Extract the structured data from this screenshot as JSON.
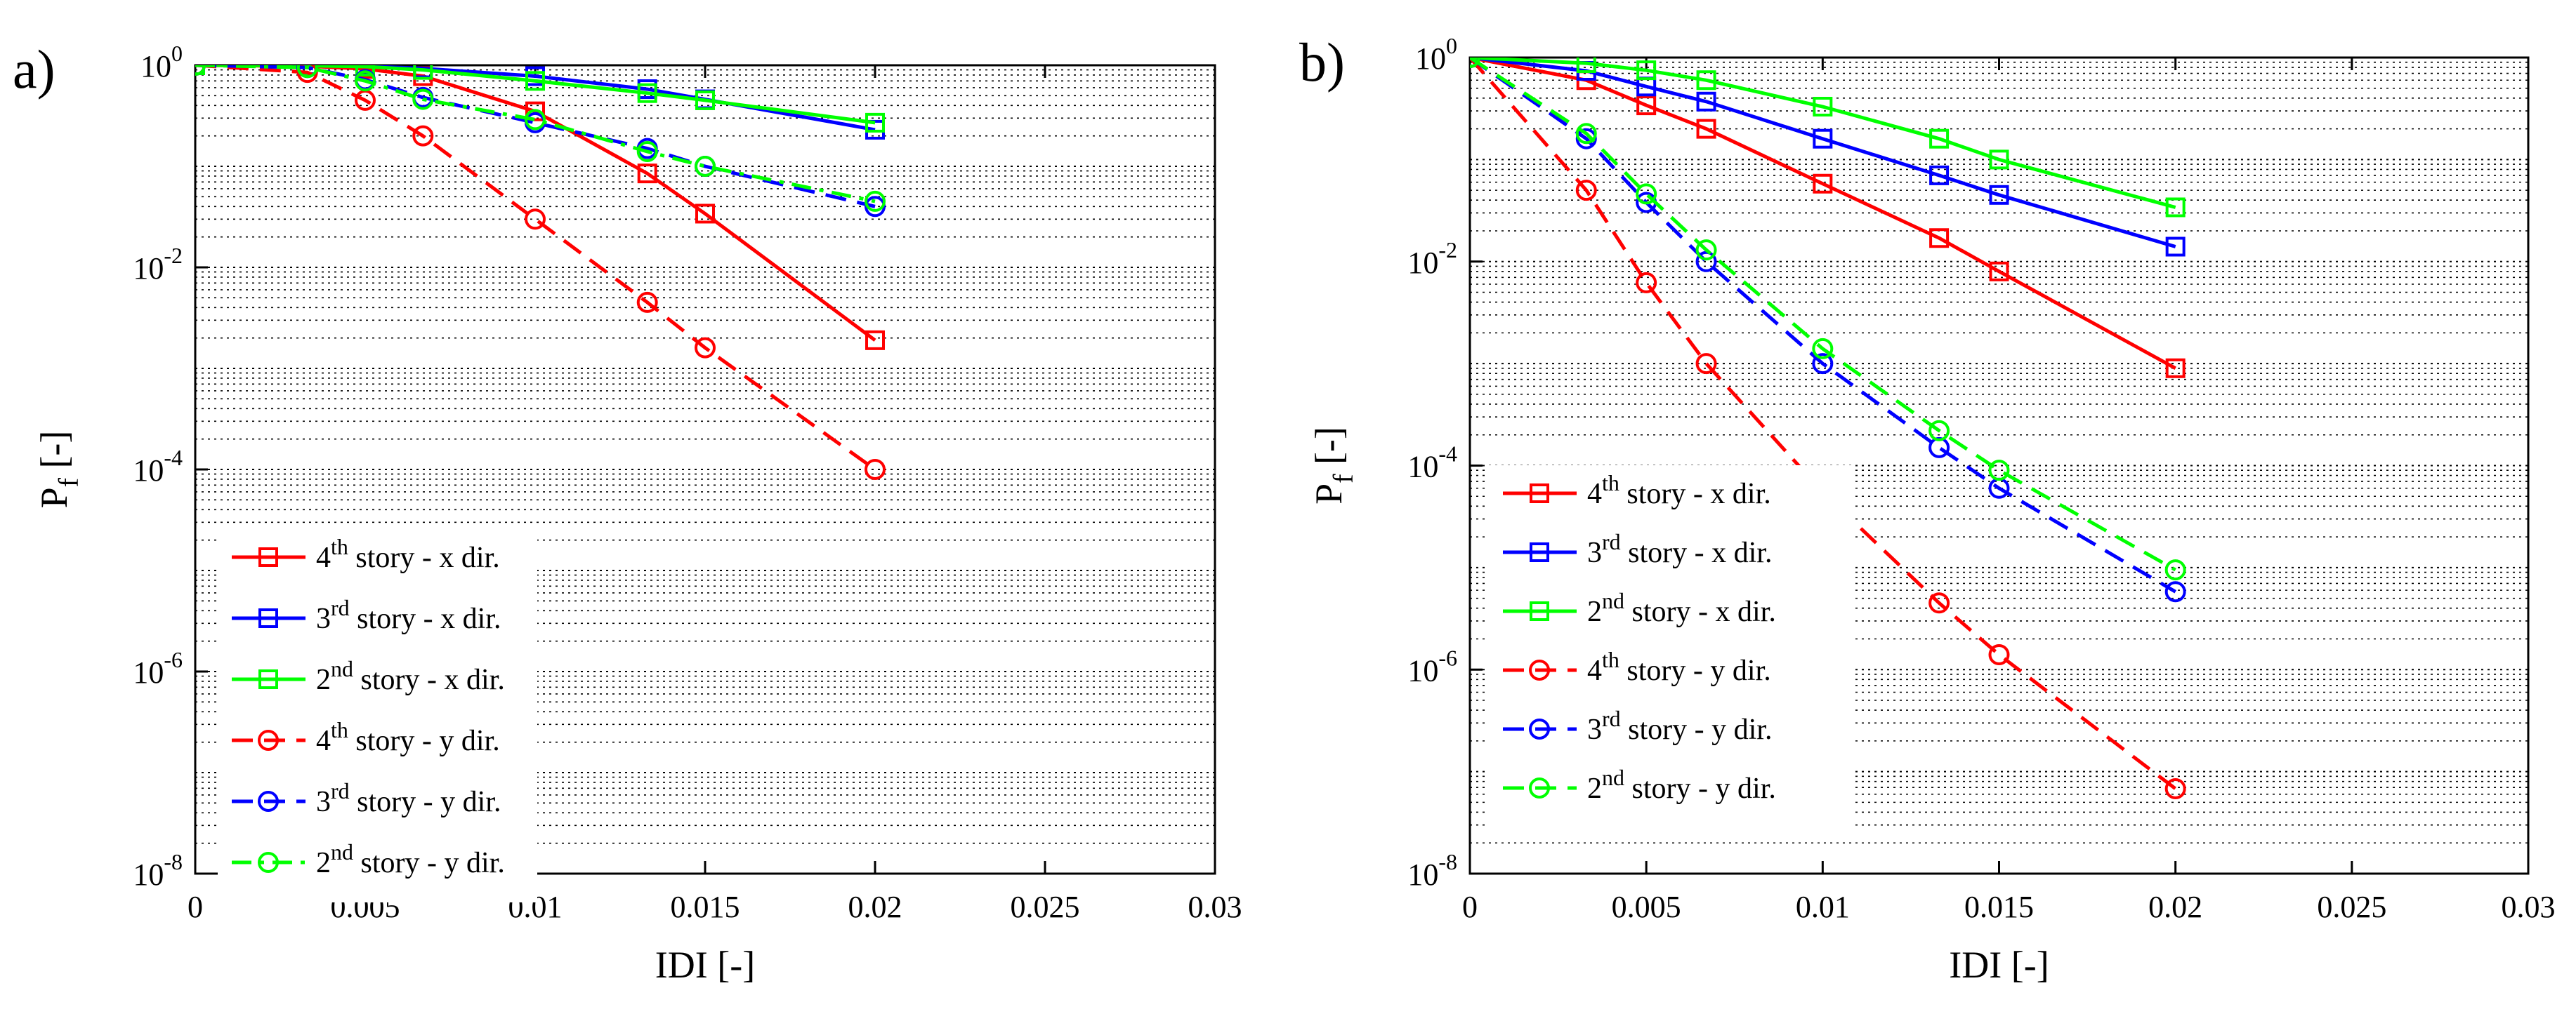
{
  "chart_data": [
    {
      "type": "line",
      "panel_label": "a)",
      "xlabel": "IDI [-]",
      "ylabel_main": "P",
      "ylabel_sub": "f",
      "ylabel_suffix": " [-]",
      "yscale": "log",
      "xlim": [
        0,
        0.03
      ],
      "ylim_exp": [
        -8,
        0
      ],
      "grid": "dotted",
      "legend_position": "bottom-left",
      "x_ticks": [
        0,
        0.005,
        0.01,
        0.015,
        0.02,
        0.025,
        0.03
      ],
      "x_tick_labels": [
        "0",
        "0.005",
        "0.01",
        "0.015",
        "0.02",
        "0.025",
        "0.03"
      ],
      "y_tick_exps": [
        0,
        -2,
        -4,
        -6,
        -8
      ],
      "y_tick_base": "10",
      "y_tick_exp_labels": [
        "0",
        "-2",
        "-4",
        "-6",
        "-8"
      ],
      "series": [
        {
          "ord": "4",
          "sup": "th",
          "rest": " story - x dir.",
          "color": "#ff0000",
          "dash": "solid",
          "marker": "square",
          "x": [
            0,
            0.0033,
            0.005,
            0.0067,
            0.01,
            0.0133,
            0.015,
            0.02
          ],
          "y": [
            1.0,
            0.98,
            0.92,
            0.78,
            0.35,
            0.085,
            0.034,
            0.0019
          ]
        },
        {
          "ord": "3",
          "sup": "rd",
          "rest": " story - x dir.",
          "color": "#0000ff",
          "dash": "solid",
          "marker": "square",
          "x": [
            0,
            0.0033,
            0.005,
            0.0067,
            0.01,
            0.0133,
            0.015,
            0.02
          ],
          "y": [
            1.0,
            1.0,
            0.98,
            0.93,
            0.78,
            0.58,
            0.46,
            0.23
          ]
        },
        {
          "ord": "2",
          "sup": "nd",
          "rest": " story - x dir.",
          "color": "#00ff00",
          "dash": "solid",
          "marker": "square",
          "x": [
            0,
            0.0033,
            0.005,
            0.0067,
            0.01,
            0.0133,
            0.015,
            0.02
          ],
          "y": [
            1.0,
            0.99,
            0.97,
            0.9,
            0.7,
            0.53,
            0.45,
            0.27
          ]
        },
        {
          "ord": "4",
          "sup": "th",
          "rest": " story - y dir.",
          "color": "#ff0000",
          "dash": "dashed",
          "marker": "circle",
          "x": [
            0,
            0.0033,
            0.005,
            0.0067,
            0.01,
            0.0133,
            0.015,
            0.02
          ],
          "y": [
            1.0,
            0.85,
            0.45,
            0.2,
            0.03,
            0.0045,
            0.0016,
            0.0001
          ]
        },
        {
          "ord": "3",
          "sup": "rd",
          "rest": " story - y dir.",
          "color": "#0000ff",
          "dash": "dashed",
          "marker": "circle",
          "x": [
            0,
            0.0033,
            0.005,
            0.0067,
            0.01,
            0.0133,
            0.015,
            0.02
          ],
          "y": [
            1.0,
            0.95,
            0.72,
            0.48,
            0.27,
            0.15,
            0.1,
            0.04
          ]
        },
        {
          "ord": "2",
          "sup": "nd",
          "rest": " story - y dir.",
          "color": "#00ff00",
          "dash": "dashdot",
          "marker": "circle",
          "x": [
            0,
            0.0033,
            0.005,
            0.0067,
            0.01,
            0.0133,
            0.015,
            0.02
          ],
          "y": [
            1.0,
            0.95,
            0.7,
            0.46,
            0.29,
            0.14,
            0.1,
            0.045
          ]
        }
      ]
    },
    {
      "type": "line",
      "panel_label": "b)",
      "xlabel": "IDI [-]",
      "ylabel_main": "P",
      "ylabel_sub": "f",
      "ylabel_suffix": " [-]",
      "yscale": "log",
      "xlim": [
        0,
        0.03
      ],
      "ylim_exp": [
        -8,
        0
      ],
      "grid": "dotted",
      "legend_position": "bottom-left",
      "x_ticks": [
        0,
        0.005,
        0.01,
        0.015,
        0.02,
        0.025,
        0.03
      ],
      "x_tick_labels": [
        "0",
        "0.005",
        "0.01",
        "0.015",
        "0.02",
        "0.025",
        "0.03"
      ],
      "y_tick_exps": [
        0,
        -2,
        -4,
        -6,
        -8
      ],
      "y_tick_base": "10",
      "y_tick_exp_labels": [
        "0",
        "-2",
        "-4",
        "-6",
        "-8"
      ],
      "series": [
        {
          "ord": "4",
          "sup": "th",
          "rest": " story - x dir.",
          "color": "#ff0000",
          "dash": "solid",
          "marker": "square",
          "x": [
            0,
            0.0033,
            0.005,
            0.0067,
            0.01,
            0.0133,
            0.015,
            0.02
          ],
          "y": [
            1.0,
            0.6,
            0.34,
            0.2,
            0.058,
            0.017,
            0.008,
            0.0009
          ]
        },
        {
          "ord": "3",
          "sup": "rd",
          "rest": " story - x dir.",
          "color": "#0000ff",
          "dash": "solid",
          "marker": "square",
          "x": [
            0,
            0.0033,
            0.005,
            0.0067,
            0.01,
            0.0133,
            0.015,
            0.02
          ],
          "y": [
            1.0,
            0.74,
            0.52,
            0.37,
            0.16,
            0.07,
            0.045,
            0.014
          ]
        },
        {
          "ord": "2",
          "sup": "nd",
          "rest": " story - x dir.",
          "color": "#00ff00",
          "dash": "solid",
          "marker": "square",
          "x": [
            0,
            0.0033,
            0.005,
            0.0067,
            0.01,
            0.0133,
            0.015,
            0.02
          ],
          "y": [
            1.0,
            0.88,
            0.75,
            0.6,
            0.33,
            0.16,
            0.1,
            0.034
          ]
        },
        {
          "ord": "4",
          "sup": "th",
          "rest": " story - y dir.",
          "color": "#ff0000",
          "dash": "dashed",
          "marker": "circle",
          "x": [
            0,
            0.0033,
            0.005,
            0.0067,
            0.01,
            0.0133,
            0.015,
            0.02
          ],
          "y": [
            1.0,
            0.05,
            0.0062,
            0.001,
            5.5e-05,
            4.5e-06,
            1.4e-06,
            6.8e-08
          ]
        },
        {
          "ord": "3",
          "sup": "rd",
          "rest": " story - y dir.",
          "color": "#0000ff",
          "dash": "dashed",
          "marker": "circle",
          "x": [
            0,
            0.0033,
            0.005,
            0.0067,
            0.01,
            0.0133,
            0.015,
            0.02
          ],
          "y": [
            1.0,
            0.16,
            0.038,
            0.01,
            0.001,
            0.00015,
            6e-05,
            5.8e-06
          ]
        },
        {
          "ord": "2",
          "sup": "nd",
          "rest": " story - y dir.",
          "color": "#00ff00",
          "dash": "dashed",
          "marker": "circle",
          "x": [
            0,
            0.0033,
            0.005,
            0.0067,
            0.01,
            0.0133,
            0.015,
            0.02
          ],
          "y": [
            1.0,
            0.18,
            0.046,
            0.013,
            0.0014,
            0.00022,
            9e-05,
            9.5e-06
          ]
        }
      ]
    }
  ]
}
